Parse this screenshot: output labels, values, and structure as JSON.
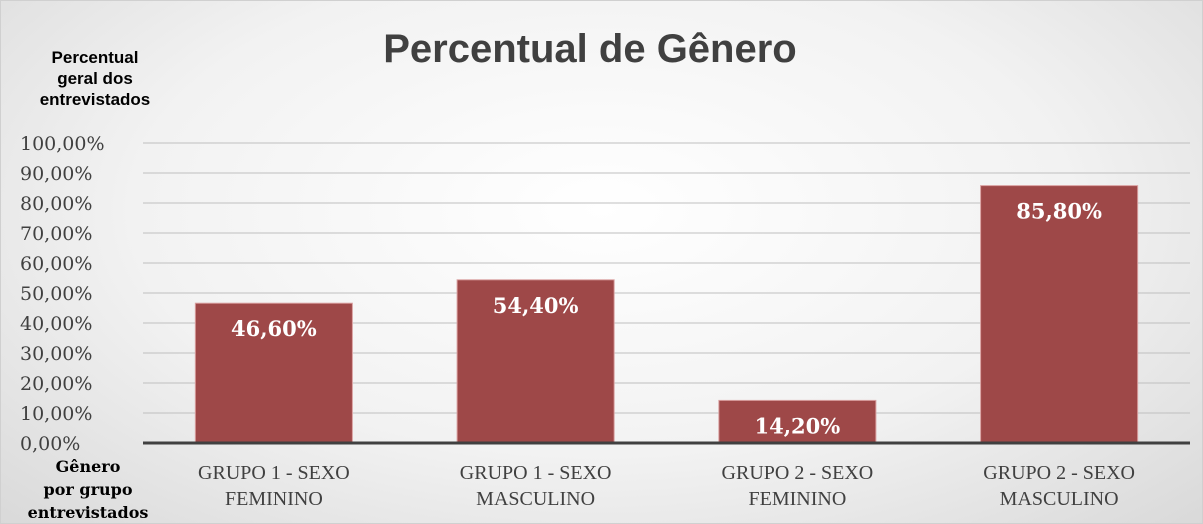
{
  "chart_data": {
    "type": "bar",
    "title": "Percentual de Gênero",
    "ylabel": [
      "Percentual",
      "geral dos",
      "entrevistados"
    ],
    "xlabel": [
      "Gênero",
      "por grupo",
      "entrevistados"
    ],
    "categories": [
      "GRUPO 1 - SEXO FEMININO",
      "GRUPO 1 - SEXO MASCULINO",
      "GRUPO 2 - SEXO FEMININO",
      "GRUPO 2 - SEXO MASCULINO"
    ],
    "values": [
      46.6,
      54.4,
      14.2,
      85.8
    ],
    "value_labels": [
      "46,60%",
      "54,40%",
      "14,20%",
      "85,80%"
    ],
    "color": "#9e4848",
    "ylim": [
      0,
      100
    ],
    "yticks": [
      {
        "value": 0,
        "label": "0,00%"
      },
      {
        "value": 10,
        "label": "10,00%"
      },
      {
        "value": 20,
        "label": "20,00%"
      },
      {
        "value": 30,
        "label": "30,00%"
      },
      {
        "value": 40,
        "label": "40,00%"
      },
      {
        "value": 50,
        "label": "50,00%"
      },
      {
        "value": 60,
        "label": "60,00%"
      },
      {
        "value": 70,
        "label": "70,00%"
      },
      {
        "value": 80,
        "label": "80,00%"
      },
      {
        "value": 90,
        "label": "90,00%"
      },
      {
        "value": 100,
        "label": "100,00%"
      }
    ],
    "grid": true
  }
}
